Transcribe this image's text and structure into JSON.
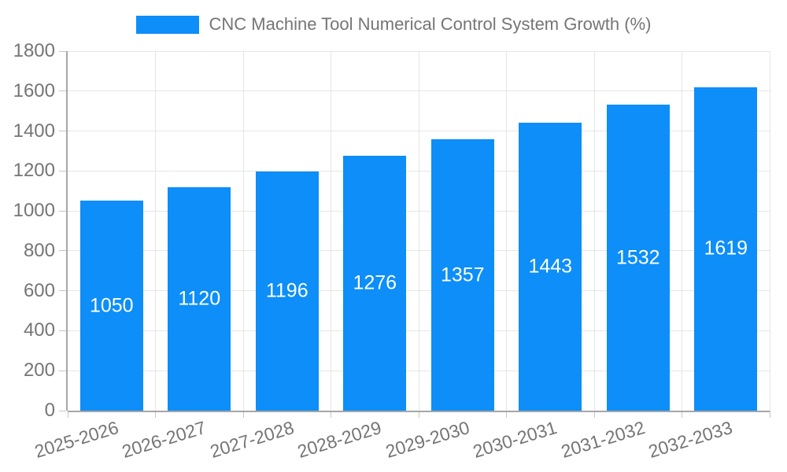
{
  "chart_data": {
    "type": "bar",
    "title": "",
    "legend": {
      "label": "CNC Machine Tool Numerical Control System Growth (%)",
      "position": "top"
    },
    "categories": [
      "2025-2026",
      "2026-2027",
      "2027-2028",
      "2028-2029",
      "2029-2030",
      "2030-2031",
      "2031-2032",
      "2032-2033"
    ],
    "series": [
      {
        "name": "CNC Machine Tool Numerical Control System Growth (%)",
        "values": [
          1050,
          1120,
          1196,
          1276,
          1357,
          1443,
          1532,
          1619
        ]
      }
    ],
    "xlabel": "",
    "ylabel": "",
    "ylim": [
      0,
      1800
    ],
    "yticks": [
      0,
      200,
      400,
      600,
      800,
      1000,
      1200,
      1400,
      1600,
      1800
    ],
    "grid": "on",
    "bar_value_labels": "inside-center",
    "x_label_rotation_deg": -17,
    "colors": {
      "bar": "#0d8ef8",
      "grid": "#e6e6e6",
      "axis_line": "#a6a6a6",
      "tick_mark": "#c6c6c6",
      "text": "#757575",
      "bar_label_text": "#ffffff",
      "background": "#ffffff"
    }
  }
}
